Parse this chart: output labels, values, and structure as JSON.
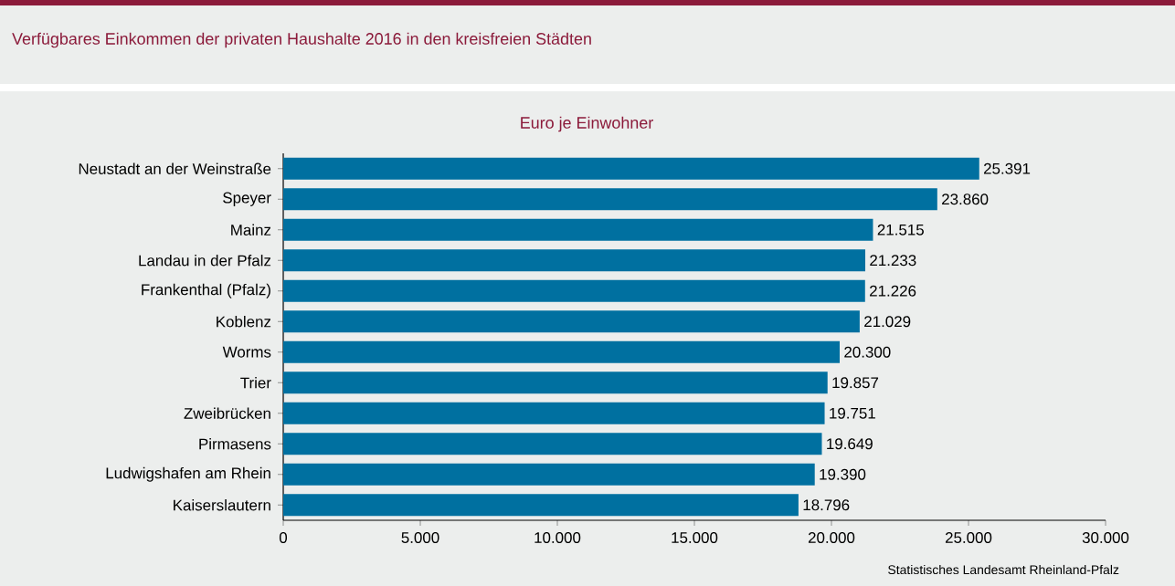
{
  "chart_data": {
    "type": "bar",
    "orientation": "horizontal",
    "title": "Verfügbares Einkommen der privaten Haushalte 2016 in den kreisfreien Städten",
    "subtitle": "Euro je Einwohner",
    "categories": [
      "Neustadt an der Weinstraße",
      "Speyer",
      "Mainz",
      "Landau in der Pfalz",
      "Frankenthal (Pfalz)",
      "Koblenz",
      "Worms",
      "Trier",
      "Zweibrücken",
      "Pirmasens",
      "Ludwigshafen am Rhein",
      "Kaiserslautern"
    ],
    "values": [
      25391,
      23860,
      21515,
      21233,
      21226,
      21029,
      20300,
      19857,
      19751,
      19649,
      19390,
      18796
    ],
    "value_labels": [
      "25.391",
      "23.860",
      "21.515",
      "21.233",
      "21.226",
      "21.029",
      "20.300",
      "19.857",
      "19.751",
      "19.649",
      "19.390",
      "18.796"
    ],
    "color": "#0070a0",
    "xlim": [
      0,
      30000
    ],
    "xticks": [
      0,
      {
        "value": 5000,
        "label": "5.000"
      },
      {
        "value": 10000,
        "label": "10.000"
      },
      {
        "value": 15000,
        "label": "15.000"
      },
      {
        "value": 20000,
        "label": "20.000"
      },
      {
        "value": 25000,
        "label": "25.000"
      },
      {
        "value": 30000,
        "label": "30.000"
      }
    ],
    "annotations": [
      "Statistisches Landesamt Rheinland-Pfalz"
    ]
  }
}
